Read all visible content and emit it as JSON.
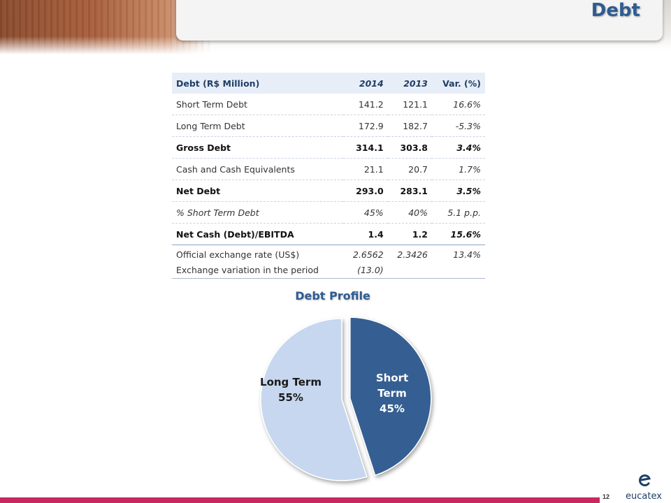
{
  "page": {
    "title": "Debt",
    "page_number": "12"
  },
  "table": {
    "headers": [
      "Debt (R$ Million)",
      "2014",
      "2013",
      "Var. (%)"
    ],
    "rows": [
      {
        "label": "Short Term Debt",
        "v2014": "141.2",
        "v2013": "121.1",
        "var": "16.6%",
        "style": "normal"
      },
      {
        "label": "Long Term Debt",
        "v2014": "172.9",
        "v2013": "182.7",
        "var": "-5.3%",
        "style": "normal"
      },
      {
        "label": "Gross Debt",
        "v2014": "314.1",
        "v2013": "303.8",
        "var": "3.4%",
        "style": "bold"
      },
      {
        "label": "Cash and Cash Equivalents",
        "v2014": "21.1",
        "v2013": "20.7",
        "var": "1.7%",
        "style": "normal"
      },
      {
        "label": "Net Debt",
        "v2014": "293.0",
        "v2013": "283.1",
        "var": "3.5%",
        "style": "bold"
      },
      {
        "label": "% Short Term Debt",
        "v2014": "45%",
        "v2013": "40%",
        "var": "5.1 p.p.",
        "style": "italic"
      },
      {
        "label": "Net Cash (Debt)/EBITDA",
        "v2014": "1.4",
        "v2013": "1.2",
        "var": "15.6%",
        "style": "bold"
      }
    ],
    "fx": {
      "label1": "Official exchange rate (US$)",
      "label2": "Exchange variation in the period",
      "v2014": "2.6562",
      "v2013": "2.3426",
      "var": "13.4%",
      "variation": "(13.0)"
    }
  },
  "chart_data": {
    "type": "pie",
    "title": "Debt Profile",
    "slices": [
      {
        "name": "Short Term",
        "label": "45%",
        "value": 45,
        "color": "#345f92"
      },
      {
        "name": "Long Term",
        "label": "55%",
        "value": 55,
        "color": "#c6d7ef"
      }
    ],
    "exploded": "Short Term"
  },
  "logo": {
    "brand": "eucatex",
    "brand_color": "#1f3e66"
  },
  "colors": {
    "accent": "#2e5b92",
    "footer_bar": "#c8285f"
  }
}
